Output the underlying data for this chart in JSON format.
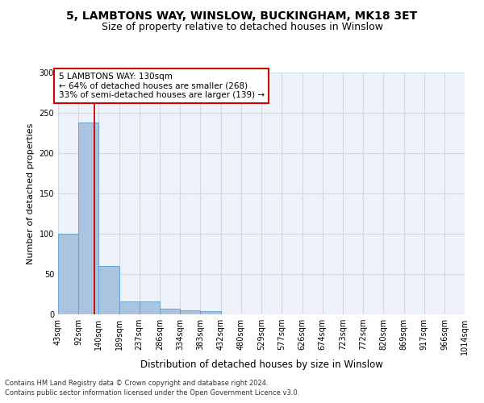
{
  "title1": "5, LAMBTONS WAY, WINSLOW, BUCKINGHAM, MK18 3ET",
  "title2": "Size of property relative to detached houses in Winslow",
  "xlabel": "Distribution of detached houses by size in Winslow",
  "ylabel": "Number of detached properties",
  "footer1": "Contains HM Land Registry data © Crown copyright and database right 2024.",
  "footer2": "Contains public sector information licensed under the Open Government Licence v3.0.",
  "annotation_line1": "5 LAMBTONS WAY: 130sqm",
  "annotation_line2": "← 64% of detached houses are smaller (268)",
  "annotation_line3": "33% of semi-detached houses are larger (139) →",
  "property_size_sqm": 130,
  "bar_values": [
    100,
    238,
    60,
    16,
    16,
    7,
    5,
    4,
    0,
    0,
    0,
    0,
    0,
    0,
    0,
    0,
    0,
    0,
    0,
    0
  ],
  "bin_edges": [
    43,
    92,
    140,
    189,
    237,
    286,
    334,
    383,
    432,
    480,
    529,
    577,
    626,
    674,
    723,
    772,
    820,
    869,
    917,
    966,
    1014
  ],
  "bar_color": "#aac4e0",
  "bar_edge_color": "#5b9bd5",
  "red_line_color": "#cc0000",
  "grid_color": "#d0d8e8",
  "background_color": "#eef3fa",
  "annotation_box_color": "#ffffff",
  "annotation_border_color": "#cc0000",
  "ylim": [
    0,
    300
  ],
  "yticks": [
    0,
    50,
    100,
    150,
    200,
    250,
    300
  ],
  "title1_fontsize": 10,
  "title2_fontsize": 9,
  "xlabel_fontsize": 8.5,
  "ylabel_fontsize": 8,
  "tick_fontsize": 7,
  "annotation_fontsize": 7.5,
  "footer_fontsize": 6
}
